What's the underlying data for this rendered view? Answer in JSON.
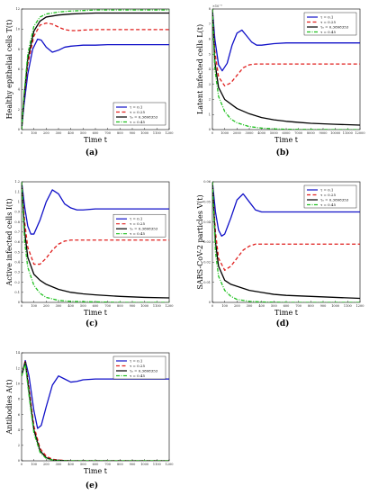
{
  "figure": {
    "panels": [
      {
        "caption": "(a)"
      },
      {
        "caption": "(b)"
      },
      {
        "caption": "(c)"
      },
      {
        "caption": "(d)"
      },
      {
        "caption": "(e)"
      }
    ]
  },
  "chart_data": [
    {
      "type": "line",
      "caption": "(a)",
      "xlabel": "Time t",
      "ylabel": "Healthy epithelial cells T(t)",
      "xlim": [
        0,
        1200
      ],
      "ylim": [
        0,
        12
      ],
      "xticks": [
        "0",
        "100",
        "200",
        "300",
        "400",
        "500",
        "600",
        "700",
        "800",
        "900",
        "1000",
        "1100",
        "1200"
      ],
      "yticks": [
        "0",
        "2",
        "4",
        "6",
        "8",
        "10",
        "12"
      ],
      "legend_position": "bottom-right",
      "series": [
        {
          "name": "τ = 0.1",
          "color": "#1010c8",
          "dash": "solid",
          "x": [
            0,
            20,
            50,
            90,
            130,
            160,
            200,
            250,
            300,
            350,
            400,
            450,
            500,
            600,
            700,
            800,
            900,
            1000,
            1200
          ],
          "y": [
            0,
            2.5,
            5.5,
            8.0,
            9.0,
            8.9,
            8.2,
            7.7,
            7.9,
            8.2,
            8.3,
            8.35,
            8.4,
            8.4,
            8.45,
            8.45,
            8.45,
            8.45,
            8.45
          ]
        },
        {
          "name": "τ = 0.25",
          "color": "#e0201f",
          "dash": "dashed",
          "x": [
            0,
            20,
            50,
            100,
            150,
            200,
            250,
            300,
            350,
            400,
            450,
            500,
            600,
            700,
            800,
            900,
            1000,
            1200
          ],
          "y": [
            0,
            3.0,
            6.5,
            9.3,
            10.4,
            10.6,
            10.5,
            10.2,
            9.95,
            9.85,
            9.85,
            9.9,
            9.95,
            9.95,
            9.95,
            9.95,
            9.95,
            9.95
          ]
        },
        {
          "name": "τ₀ = 0.3808353",
          "color": "#000000",
          "dash": "solid",
          "x": [
            0,
            20,
            50,
            100,
            150,
            200,
            300,
            400,
            500,
            600,
            800,
            1000,
            1200
          ],
          "y": [
            0,
            3.2,
            7.0,
            9.8,
            10.8,
            11.2,
            11.4,
            11.5,
            11.55,
            11.6,
            11.6,
            11.6,
            11.6
          ]
        },
        {
          "name": "τ = 0.45",
          "color": "#20c020",
          "dash": "dashdot",
          "x": [
            0,
            20,
            50,
            100,
            150,
            200,
            300,
            400,
            500,
            600,
            800,
            1000,
            1200
          ],
          "y": [
            0,
            3.5,
            7.5,
            10.3,
            11.2,
            11.5,
            11.7,
            11.8,
            11.85,
            11.9,
            11.9,
            11.9,
            11.9
          ]
        }
      ]
    },
    {
      "type": "line",
      "caption": "(b)",
      "xlabel": "Time t",
      "ylabel": "Latent infected cells L(t)",
      "multiplier": "×10⁻³",
      "xlim": [
        0,
        12000
      ],
      "ylim": [
        0,
        8
      ],
      "xticks": [
        "0",
        "1000",
        "2000",
        "3000",
        "4000",
        "5000",
        "6000",
        "7000",
        "8000",
        "9000",
        "10000",
        "11000",
        "12000"
      ],
      "yticks": [
        "0",
        "1",
        "2",
        "3",
        "4",
        "5",
        "6",
        "7",
        "8"
      ],
      "legend_position": "top-right",
      "series": [
        {
          "name": "τ = 0.1",
          "color": "#1010c8",
          "dash": "solid",
          "x": [
            0,
            200,
            500,
            800,
            1200,
            1600,
            2000,
            2400,
            2800,
            3200,
            3600,
            4000,
            5000,
            6000,
            8000,
            10000,
            12000
          ],
          "y": [
            8,
            6,
            4.3,
            3.9,
            4.4,
            5.6,
            6.4,
            6.6,
            6.2,
            5.8,
            5.6,
            5.6,
            5.7,
            5.75,
            5.75,
            5.75,
            5.75
          ]
        },
        {
          "name": "τ = 0.25",
          "color": "#e0201f",
          "dash": "dashed",
          "x": [
            0,
            200,
            500,
            1000,
            1500,
            2000,
            2500,
            3000,
            3500,
            4000,
            5000,
            6000,
            8000,
            10000,
            12000
          ],
          "y": [
            8,
            5.2,
            3.5,
            2.9,
            3.1,
            3.6,
            4.1,
            4.3,
            4.35,
            4.35,
            4.35,
            4.35,
            4.35,
            4.35,
            4.35
          ]
        },
        {
          "name": "τ₀ = 0.3808353",
          "color": "#000000",
          "dash": "solid",
          "x": [
            0,
            200,
            500,
            1000,
            2000,
            3000,
            4000,
            5000,
            6000,
            7000,
            8000,
            10000,
            12000
          ],
          "y": [
            8,
            4.5,
            2.8,
            2.0,
            1.4,
            1.05,
            0.8,
            0.65,
            0.55,
            0.48,
            0.42,
            0.35,
            0.3
          ]
        },
        {
          "name": "τ = 0.45",
          "color": "#20c020",
          "dash": "dashdot",
          "x": [
            0,
            200,
            500,
            1000,
            1500,
            2000,
            3000,
            4000,
            5000,
            6000,
            8000,
            10000,
            12000
          ],
          "y": [
            8,
            4.0,
            2.2,
            1.2,
            0.7,
            0.45,
            0.2,
            0.1,
            0.05,
            0.02,
            0.01,
            0,
            0
          ]
        }
      ]
    },
    {
      "type": "line",
      "caption": "(c)",
      "xlabel": "Time t",
      "ylabel": "Active infected cells I(t)",
      "xlim": [
        0,
        1200
      ],
      "ylim": [
        0,
        1.2
      ],
      "xticks": [
        "0",
        "100",
        "200",
        "300",
        "400",
        "500",
        "600",
        "700",
        "800",
        "900",
        "1000",
        "1100",
        "1200"
      ],
      "yticks": [
        "0",
        "0.1",
        "0.2",
        "0.3",
        "0.4",
        "0.5",
        "0.6",
        "0.7",
        "0.8",
        "0.9",
        "1",
        "1.1",
        "1.2"
      ],
      "legend_position": "center-right",
      "series": [
        {
          "name": "τ = 0.1",
          "color": "#1010c8",
          "dash": "solid",
          "x": [
            0,
            25,
            50,
            75,
            100,
            150,
            200,
            250,
            300,
            350,
            400,
            450,
            500,
            600,
            700,
            800,
            1000,
            1200
          ],
          "y": [
            1.2,
            0.95,
            0.76,
            0.68,
            0.68,
            0.82,
            1.0,
            1.12,
            1.08,
            0.98,
            0.94,
            0.92,
            0.92,
            0.93,
            0.93,
            0.93,
            0.93,
            0.93
          ]
        },
        {
          "name": "τ = 0.25",
          "color": "#e0201f",
          "dash": "dashed",
          "x": [
            0,
            25,
            50,
            100,
            150,
            200,
            250,
            300,
            350,
            400,
            450,
            500,
            600,
            800,
            1000,
            1200
          ],
          "y": [
            1.2,
            0.8,
            0.55,
            0.38,
            0.38,
            0.44,
            0.52,
            0.58,
            0.61,
            0.62,
            0.62,
            0.62,
            0.62,
            0.62,
            0.62,
            0.62
          ]
        },
        {
          "name": "τ₀ = 0.3808353",
          "color": "#000000",
          "dash": "solid",
          "x": [
            0,
            25,
            50,
            100,
            150,
            200,
            300,
            400,
            500,
            600,
            800,
            1000,
            1200
          ],
          "y": [
            1.2,
            0.7,
            0.45,
            0.28,
            0.22,
            0.18,
            0.13,
            0.1,
            0.085,
            0.075,
            0.06,
            0.05,
            0.045
          ]
        },
        {
          "name": "τ = 0.45",
          "color": "#20c020",
          "dash": "dashdot",
          "x": [
            0,
            25,
            50,
            100,
            150,
            200,
            300,
            400,
            600,
            800,
            1000,
            1200
          ],
          "y": [
            1.2,
            0.6,
            0.35,
            0.17,
            0.09,
            0.05,
            0.02,
            0.01,
            0.005,
            0,
            0,
            0
          ]
        }
      ]
    },
    {
      "type": "line",
      "caption": "(d)",
      "xlabel": "Time t",
      "ylabel": "SARS-CoV-2 particles V(t)",
      "xlim": [
        0,
        1200
      ],
      "ylim": [
        0,
        0.06
      ],
      "xticks": [
        "0",
        "100",
        "200",
        "300",
        "400",
        "500",
        "600",
        "700",
        "800",
        "900",
        "1000",
        "1100",
        "1200"
      ],
      "yticks": [
        "0",
        "0.01",
        "0.02",
        "0.03",
        "0.04",
        "0.05",
        "0.06"
      ],
      "legend_position": "top-right",
      "series": [
        {
          "name": "τ = 0.1",
          "color": "#1010c8",
          "dash": "solid",
          "x": [
            0,
            25,
            50,
            75,
            100,
            150,
            200,
            250,
            300,
            350,
            400,
            450,
            500,
            600,
            800,
            1000,
            1200
          ],
          "y": [
            0.06,
            0.045,
            0.036,
            0.033,
            0.034,
            0.042,
            0.051,
            0.054,
            0.05,
            0.046,
            0.045,
            0.045,
            0.045,
            0.045,
            0.045,
            0.045,
            0.045
          ]
        },
        {
          "name": "τ = 0.25",
          "color": "#e0201f",
          "dash": "dashed",
          "x": [
            0,
            25,
            50,
            100,
            150,
            200,
            250,
            300,
            350,
            400,
            500,
            600,
            800,
            1000,
            1200
          ],
          "y": [
            0.06,
            0.035,
            0.022,
            0.016,
            0.018,
            0.022,
            0.026,
            0.028,
            0.029,
            0.029,
            0.029,
            0.029,
            0.029,
            0.029,
            0.029
          ]
        },
        {
          "name": "τ₀ = 0.3808353",
          "color": "#000000",
          "dash": "solid",
          "x": [
            0,
            25,
            50,
            100,
            150,
            200,
            300,
            400,
            500,
            600,
            800,
            1000,
            1200
          ],
          "y": [
            0.06,
            0.03,
            0.018,
            0.011,
            0.009,
            0.008,
            0.006,
            0.005,
            0.004,
            0.0035,
            0.003,
            0.0025,
            0.002
          ]
        },
        {
          "name": "τ = 0.45",
          "color": "#20c020",
          "dash": "dashdot",
          "x": [
            0,
            25,
            50,
            100,
            150,
            200,
            300,
            400,
            600,
            800,
            1000,
            1200
          ],
          "y": [
            0.06,
            0.025,
            0.013,
            0.006,
            0.003,
            0.0015,
            0.0005,
            0.0002,
            0,
            0,
            0,
            0
          ]
        }
      ]
    },
    {
      "type": "line",
      "caption": "(e)",
      "xlabel": "Time t",
      "ylabel": "Antibodies A(t)",
      "xlim": [
        0,
        1200
      ],
      "ylim": [
        0,
        14
      ],
      "xticks": [
        "0",
        "100",
        "200",
        "300",
        "400",
        "500",
        "600",
        "700",
        "800",
        "900",
        "1000",
        "1100",
        "1200"
      ],
      "yticks": [
        "0",
        "2",
        "4",
        "6",
        "8",
        "10",
        "12",
        "14"
      ],
      "legend_position": "top-right",
      "series": [
        {
          "name": "τ = 0.1",
          "color": "#1010c8",
          "dash": "solid",
          "x": [
            0,
            30,
            60,
            100,
            130,
            160,
            200,
            250,
            300,
            350,
            400,
            450,
            500,
            600,
            700,
            800,
            1000,
            1200
          ],
          "y": [
            11,
            13,
            11,
            6.5,
            4.2,
            4.6,
            7,
            9.8,
            11,
            10.6,
            10.2,
            10.3,
            10.5,
            10.6,
            10.6,
            10.6,
            10.6,
            10.6
          ]
        },
        {
          "name": "τ = 0.25",
          "color": "#e0201f",
          "dash": "dashed",
          "x": [
            0,
            30,
            60,
            100,
            150,
            200,
            250,
            300,
            400,
            600,
            800,
            1000,
            1200
          ],
          "y": [
            11,
            13,
            9.5,
            4.5,
            1.6,
            0.6,
            0.2,
            0.1,
            0,
            0,
            0,
            0,
            0
          ]
        },
        {
          "name": "τ₀ = 0.3808353",
          "color": "#000000",
          "dash": "solid",
          "x": [
            0,
            30,
            60,
            100,
            150,
            200,
            250,
            300,
            400,
            600,
            800,
            1000,
            1200
          ],
          "y": [
            11,
            12.8,
            9,
            4.0,
            1.3,
            0.4,
            0.1,
            0.05,
            0,
            0,
            0,
            0,
            0
          ]
        },
        {
          "name": "τ = 0.45",
          "color": "#20c020",
          "dash": "dashdot",
          "x": [
            0,
            30,
            60,
            100,
            150,
            200,
            250,
            300,
            400,
            600,
            800,
            1000,
            1200
          ],
          "y": [
            11,
            12.6,
            8.5,
            3.6,
            1.1,
            0.3,
            0.1,
            0,
            0,
            0,
            0,
            0,
            0
          ]
        }
      ]
    }
  ]
}
